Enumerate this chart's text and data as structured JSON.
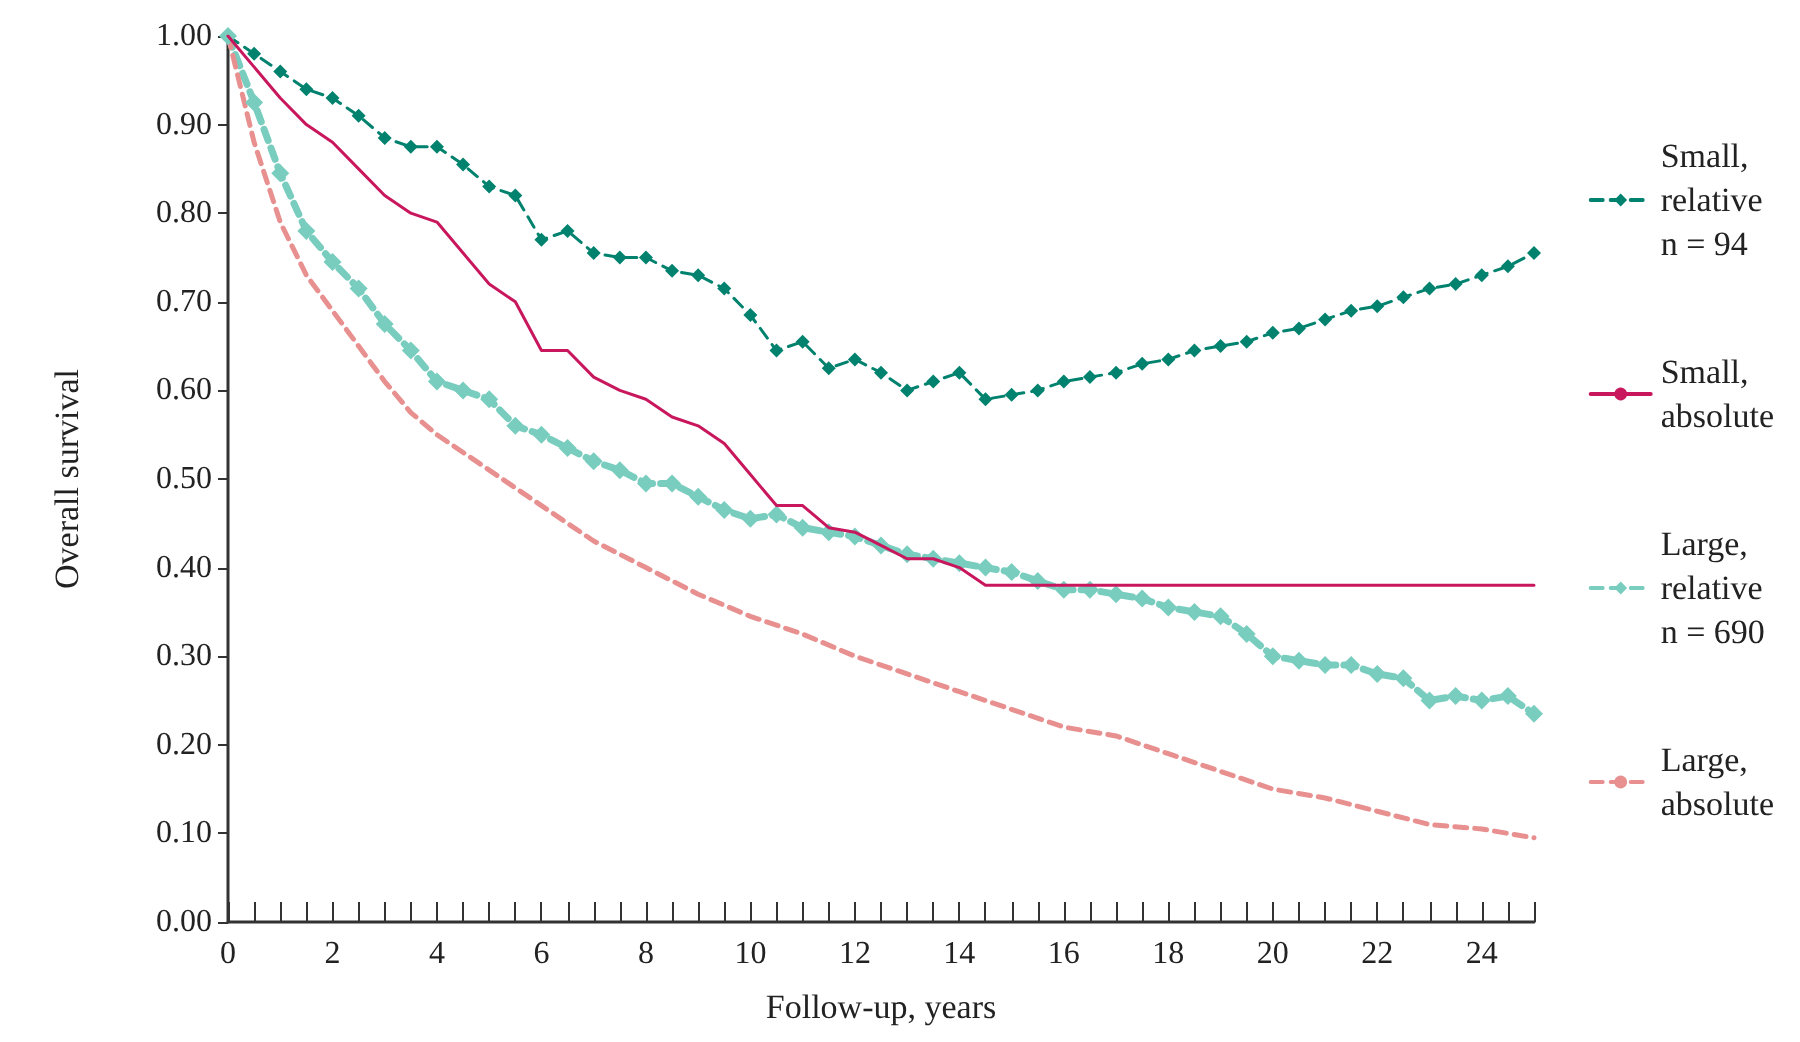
{
  "chart_data": {
    "type": "line",
    "xlabel": "Follow-up, years",
    "ylabel": "Overall survival",
    "xlim": [
      0,
      25
    ],
    "xticks": [
      0,
      {
        "value": 0.5,
        "label": null
      },
      {
        "value": 1,
        "label": null
      },
      {
        "value": 1.5,
        "label": null
      },
      2,
      {
        "value": 2.5,
        "label": null
      },
      {
        "value": 3,
        "label": null
      },
      {
        "value": 3.5,
        "label": null
      },
      4,
      {
        "value": 4.5,
        "label": null
      },
      {
        "value": 5,
        "label": null
      },
      {
        "value": 5.5,
        "label": null
      },
      6,
      {
        "value": 6.5,
        "label": null
      },
      {
        "value": 7,
        "label": null
      },
      {
        "value": 7.5,
        "label": null
      },
      8,
      {
        "value": 8.5,
        "label": null
      },
      {
        "value": 9,
        "label": null
      },
      {
        "value": 9.5,
        "label": null
      },
      10,
      {
        "value": 10.5,
        "label": null
      },
      {
        "value": 11,
        "label": null
      },
      {
        "value": 11.5,
        "label": null
      },
      12,
      {
        "value": 12.5,
        "label": null
      },
      {
        "value": 13,
        "label": null
      },
      {
        "value": 13.5,
        "label": null
      },
      14,
      {
        "value": 14.5,
        "label": null
      },
      {
        "value": 15,
        "label": null
      },
      {
        "value": 15.5,
        "label": null
      },
      16,
      {
        "value": 16.5,
        "label": null
      },
      {
        "value": 17,
        "label": null
      },
      {
        "value": 17.5,
        "label": null
      },
      18,
      {
        "value": 18.5,
        "label": null
      },
      {
        "value": 19,
        "label": null
      },
      {
        "value": 19.5,
        "label": null
      },
      20,
      {
        "value": 20.5,
        "label": null
      },
      {
        "value": 21,
        "label": null
      },
      {
        "value": 21.5,
        "label": null
      },
      22,
      {
        "value": 22.5,
        "label": null
      },
      {
        "value": 23,
        "label": null
      },
      {
        "value": 23.5,
        "label": null
      },
      24,
      {
        "value": 24.5,
        "label": null
      },
      {
        "value": 25,
        "label": null
      }
    ],
    "ylim": [
      0,
      1
    ],
    "yticks": [
      {
        "value": 0,
        "label": "0.00"
      },
      {
        "value": 0.1,
        "label": "0.10"
      },
      {
        "value": 0.2,
        "label": "0.20"
      },
      {
        "value": 0.3,
        "label": "0.30"
      },
      {
        "value": 0.4,
        "label": "0.40"
      },
      {
        "value": 0.5,
        "label": "0.50"
      },
      {
        "value": 0.6,
        "label": "0.60"
      },
      {
        "value": 0.7,
        "label": "0.70"
      },
      {
        "value": 0.8,
        "label": "0.80"
      },
      {
        "value": 0.9,
        "label": "0.90"
      },
      {
        "value": 1,
        "label": "1.00"
      }
    ],
    "grid": false,
    "legend": "right",
    "series": [
      {
        "name": "Small,\nrelative\nn = 94",
        "color": "#00826e",
        "marker": "diamond",
        "line_style": "dashed",
        "x": [
          0,
          0.5,
          1,
          1.5,
          2,
          2.5,
          3,
          3.5,
          4,
          4.5,
          5,
          5.5,
          6,
          6.5,
          7,
          7.5,
          8,
          8.5,
          9,
          9.5,
          10,
          10.5,
          11,
          11.5,
          12,
          12.5,
          13,
          13.5,
          14,
          14.5,
          15,
          15.5,
          16,
          16.5,
          17,
          17.5,
          18,
          18.5,
          19,
          19.5,
          20,
          20.5,
          21,
          21.5,
          22,
          22.5,
          23,
          23.5,
          24,
          24.5,
          25
        ],
        "values": [
          1.0,
          0.98,
          0.96,
          0.94,
          0.93,
          0.91,
          0.885,
          0.875,
          0.875,
          0.855,
          0.83,
          0.82,
          0.77,
          0.78,
          0.755,
          0.75,
          0.75,
          0.735,
          0.73,
          0.715,
          0.685,
          0.645,
          0.655,
          0.625,
          0.635,
          0.62,
          0.6,
          0.61,
          0.62,
          0.59,
          0.595,
          0.6,
          0.61,
          0.615,
          0.62,
          0.63,
          0.635,
          0.645,
          0.65,
          0.655,
          0.665,
          0.67,
          0.68,
          0.69,
          0.695,
          0.705,
          0.715,
          0.72,
          0.73,
          0.74,
          0.755
        ]
      },
      {
        "name": "Small,\nabsolute",
        "color": "#c8175d",
        "marker": "none",
        "line_style": "solid",
        "x": [
          0,
          1,
          1.5,
          2,
          2.5,
          3,
          3.5,
          4,
          4.5,
          5,
          5.5,
          6,
          6.5,
          7,
          7.5,
          8,
          8.5,
          9,
          9.5,
          10,
          10.5,
          11,
          11.5,
          12,
          12.5,
          13,
          13.5,
          14,
          14.5,
          25
        ],
        "values": [
          1.0,
          0.93,
          0.9,
          0.88,
          0.85,
          0.82,
          0.8,
          0.79,
          0.755,
          0.72,
          0.7,
          0.645,
          0.645,
          0.615,
          0.6,
          0.59,
          0.57,
          0.56,
          0.54,
          0.505,
          0.47,
          0.47,
          0.445,
          0.44,
          0.425,
          0.41,
          0.41,
          0.4,
          0.38,
          0.38
        ]
      },
      {
        "name": "Large,\nrelative\nn = 690",
        "color": "#79cdbf",
        "marker": "diamond",
        "line_style": "dashed",
        "x": [
          0,
          0.5,
          1,
          1.5,
          2,
          2.5,
          3,
          3.5,
          4,
          4.5,
          5,
          5.5,
          6,
          6.5,
          7,
          7.5,
          8,
          8.5,
          9,
          9.5,
          10,
          10.5,
          11,
          11.5,
          12,
          12.5,
          13,
          13.5,
          14,
          14.5,
          15,
          15.5,
          16,
          16.5,
          17,
          17.5,
          18,
          18.5,
          19,
          19.5,
          20,
          20.5,
          21,
          21.5,
          22,
          22.5,
          23,
          23.5,
          24,
          24.5,
          25
        ],
        "values": [
          1.0,
          0.925,
          0.845,
          0.78,
          0.745,
          0.715,
          0.675,
          0.645,
          0.61,
          0.6,
          0.59,
          0.56,
          0.55,
          0.535,
          0.52,
          0.51,
          0.495,
          0.495,
          0.48,
          0.465,
          0.455,
          0.46,
          0.445,
          0.44,
          0.435,
          0.425,
          0.415,
          0.41,
          0.405,
          0.4,
          0.395,
          0.385,
          0.375,
          0.375,
          0.37,
          0.365,
          0.355,
          0.35,
          0.345,
          0.325,
          0.3,
          0.295,
          0.29,
          0.29,
          0.28,
          0.275,
          0.25,
          0.255,
          0.25,
          0.255,
          0.235
        ]
      },
      {
        "name": "Large,\nabsolute",
        "color": "#e8908f",
        "marker": "none",
        "line_style": "dashed",
        "x": [
          0,
          0.5,
          1,
          1.5,
          2,
          2.5,
          3,
          3.5,
          4,
          5,
          6,
          7,
          8,
          9,
          10,
          11,
          12,
          13,
          14,
          15,
          16,
          17,
          18,
          19,
          20,
          21,
          22,
          23,
          24,
          25
        ],
        "values": [
          1.0,
          0.88,
          0.79,
          0.73,
          0.69,
          0.65,
          0.61,
          0.575,
          0.55,
          0.51,
          0.47,
          0.43,
          0.4,
          0.37,
          0.345,
          0.325,
          0.3,
          0.28,
          0.26,
          0.24,
          0.22,
          0.21,
          0.19,
          0.17,
          0.15,
          0.14,
          0.125,
          0.11,
          0.105,
          0.095
        ]
      }
    ]
  }
}
